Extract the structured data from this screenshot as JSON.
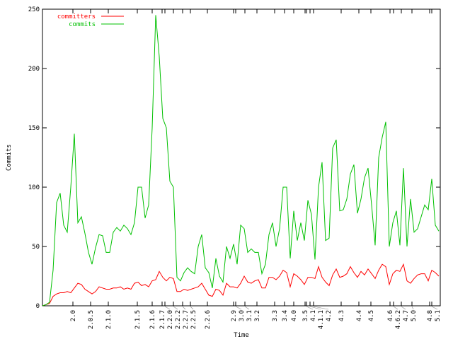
{
  "chart_data": {
    "type": "line",
    "title": "",
    "xlabel": "Time",
    "ylabel": "Commits",
    "ylim": [
      0,
      250
    ],
    "yticks": [
      0,
      50,
      100,
      150,
      200,
      250
    ],
    "xlim": [
      0,
      112.4
    ],
    "grid": false,
    "legend_placement": "top-left",
    "x_ticks": [
      {
        "at": 8.6,
        "label": "2.0"
      },
      {
        "at": 13.6,
        "label": "2.0.5"
      },
      {
        "at": 18.6,
        "label": "2.1.0"
      },
      {
        "at": 26.8,
        "label": "2.1.5"
      },
      {
        "at": 31.0,
        "label": "2.1.6"
      },
      {
        "at": 33.8,
        "label": "2.1.7"
      },
      {
        "at": 34.6,
        "label": "2.2.0"
      },
      {
        "at": 37.0,
        "label": "2.2.2"
      },
      {
        "at": 39.6,
        "label": "2.2.7"
      },
      {
        "at": 41.8,
        "label": "2.2.5"
      },
      {
        "at": 46.6,
        "label": "2.2.6"
      },
      {
        "at": 54.0,
        "label": "2.9"
      },
      {
        "at": 54.6,
        "label": "3.0"
      },
      {
        "at": 57.2,
        "label": "3.1"
      },
      {
        "at": 60.6,
        "label": "3.2"
      },
      {
        "at": 65.6,
        "label": "3.3"
      },
      {
        "at": 68.4,
        "label": "3.4"
      },
      {
        "at": 71.0,
        "label": "4.0"
      },
      {
        "at": 74.2,
        "label": "3.5"
      },
      {
        "at": 74.6,
        "label": "4.1"
      },
      {
        "at": 75.6,
        "label": "4.1.1"
      },
      {
        "at": 76.6,
        "label": "4.2"
      },
      {
        "at": 84.4,
        "label": "4.3"
      },
      {
        "at": 89.4,
        "label": "4.4"
      },
      {
        "at": 92.8,
        "label": "4.5"
      },
      {
        "at": 98.2,
        "label": "4.6"
      },
      {
        "at": 99.2,
        "label": "4.6.2"
      },
      {
        "at": 101.4,
        "label": "4.7"
      },
      {
        "at": 104.4,
        "label": "5.0"
      },
      {
        "at": 109.4,
        "label": "4.8"
      },
      {
        "at": 110.0,
        "label": "5.1"
      }
    ],
    "series": [
      {
        "name": "committers",
        "color": "#ff0000",
        "values": [
          0,
          1,
          2,
          8,
          10,
          11,
          11,
          12,
          11,
          15,
          19,
          18,
          14,
          12,
          10,
          12,
          16,
          15,
          14,
          14,
          15,
          15,
          16,
          14,
          15,
          14,
          19,
          20,
          17,
          18,
          16,
          21,
          22,
          29,
          24,
          21,
          24,
          23,
          12,
          12,
          14,
          13,
          14,
          15,
          16,
          19,
          14,
          9,
          8,
          14,
          13,
          9,
          19,
          16,
          16,
          15,
          19,
          25,
          20,
          19,
          21,
          22,
          15,
          15,
          24,
          24,
          22,
          25,
          30,
          28,
          16,
          27,
          25,
          22,
          18,
          24,
          24,
          23,
          33,
          24,
          20,
          17,
          26,
          31,
          24,
          25,
          27,
          33,
          28,
          24,
          29,
          26,
          31,
          27,
          23,
          30,
          35,
          33,
          18,
          27,
          30,
          29,
          35,
          21,
          19,
          23,
          26,
          27,
          27,
          21,
          30,
          28,
          25
        ]
      },
      {
        "name": "commits",
        "color": "#00c000",
        "values": [
          0,
          1,
          3,
          30,
          87,
          95,
          68,
          62,
          100,
          145,
          70,
          75,
          61,
          45,
          35,
          49,
          60,
          59,
          45,
          45,
          62,
          66,
          63,
          68,
          65,
          60,
          70,
          100,
          100,
          74,
          85,
          150,
          245,
          210,
          158,
          150,
          105,
          100,
          24,
          21,
          28,
          32,
          29,
          27,
          50,
          60,
          32,
          28,
          15,
          40,
          25,
          20,
          50,
          40,
          52,
          35,
          68,
          65,
          45,
          48,
          45,
          45,
          27,
          35,
          60,
          70,
          50,
          65,
          100,
          100,
          40,
          80,
          55,
          70,
          55,
          89,
          77,
          39,
          100,
          121,
          55,
          57,
          133,
          140,
          80,
          81,
          90,
          111,
          119,
          78,
          90,
          108,
          116,
          85,
          51,
          125,
          142,
          155,
          50,
          70,
          80,
          51,
          116,
          50,
          90,
          62,
          65,
          75,
          85,
          81,
          107,
          68,
          63
        ]
      }
    ]
  }
}
